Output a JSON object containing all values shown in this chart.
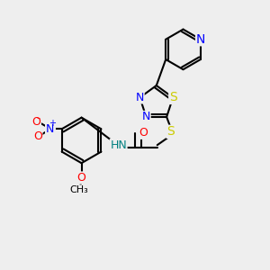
{
  "bg_color": "#eeeeee",
  "bond_color": "#000000",
  "bond_lw": 1.5,
  "atom_colors": {
    "N": "#0000ff",
    "S": "#cccc00",
    "O": "#ff0000",
    "H": "#008080",
    "C": "#000000"
  },
  "font_size": 9,
  "figsize": [
    3.0,
    3.0
  ],
  "dpi": 100
}
